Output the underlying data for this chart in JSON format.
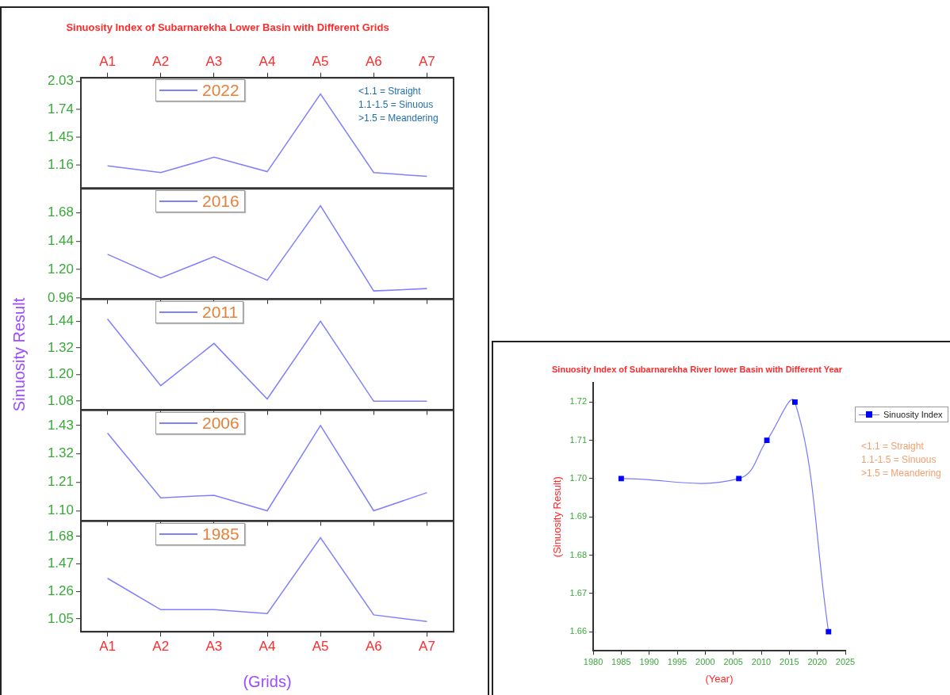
{
  "chart_data": [
    {
      "type": "line",
      "title": "Sinuosity Index of Subarnarekha Lower Basin with Different Grids",
      "categories": [
        "A1",
        "A2",
        "A3",
        "A4",
        "A5",
        "A6",
        "A7"
      ],
      "series": [
        {
          "name": "2022",
          "color": "#8080ff",
          "values": [
            1.15,
            1.08,
            1.24,
            1.09,
            1.9,
            1.08,
            1.04
          ]
        }
      ],
      "ylim": [
        0.91,
        2.07
      ],
      "yticks": [
        1.16,
        1.45,
        1.74,
        2.03
      ],
      "grid": false,
      "legend": "top",
      "marker": "none",
      "line_style": "solid",
      "annotations": [
        "<1.1 = Straight",
        "1.1-1.5 = Sinuous",
        ">1.5 = Meandering"
      ]
    },
    {
      "type": "line",
      "categories": [
        null,
        null,
        null,
        null,
        null,
        null,
        null
      ],
      "series": [
        {
          "name": "2016",
          "color": "#8080ff",
          "values": [
            1.33,
            1.13,
            1.31,
            1.11,
            1.74,
            1.02,
            1.04
          ]
        }
      ],
      "ylim": [
        0.95,
        1.89
      ],
      "yticks": [
        0.96,
        {
          "value": 1.2,
          "label": "1.20"
        },
        1.44,
        1.68
      ],
      "grid": false,
      "legend": "top",
      "marker": "none",
      "line_style": "solid",
      "tick_labels": "y"
    },
    {
      "type": "line",
      "ylabel": "Sinuosity Result",
      "categories": [
        null,
        null,
        null,
        null,
        null,
        null,
        null
      ],
      "series": [
        {
          "name": "2011",
          "color": "#8080ff",
          "values": [
            1.45,
            1.15,
            1.34,
            1.09,
            1.44,
            1.08,
            1.08
          ]
        }
      ],
      "ylim": [
        1.04,
        1.54
      ],
      "yticks": [
        1.08,
        {
          "value": 1.2,
          "label": "1.20"
        },
        1.32,
        1.44
      ],
      "grid": false,
      "legend": "top",
      "marker": "none",
      "line_style": "solid",
      "tick_labels": "y"
    },
    {
      "type": "line",
      "categories": [
        null,
        null,
        null,
        null,
        null,
        null,
        null
      ],
      "series": [
        {
          "name": "2006",
          "color": "#8080ff",
          "values": [
            1.4,
            1.15,
            1.16,
            1.1,
            1.43,
            1.1,
            1.17
          ]
        }
      ],
      "ylim": [
        1.06,
        1.49
      ],
      "yticks": [
        {
          "value": 1.1,
          "label": "1.10"
        },
        1.21,
        1.32,
        1.43
      ],
      "grid": false,
      "legend": "top",
      "marker": "none",
      "line_style": "solid",
      "tick_labels": "y"
    },
    {
      "type": "line",
      "xlabel": "(Grids)",
      "categories": [
        "A1",
        "A2",
        "A3",
        "A4",
        "A5",
        "A6",
        "A7"
      ],
      "series": [
        {
          "name": "1985",
          "color": "#8080ff",
          "values": [
            1.36,
            1.12,
            1.12,
            1.09,
            1.67,
            1.08,
            1.03
          ]
        }
      ],
      "ylim": [
        0.95,
        1.8
      ],
      "yticks": [
        1.05,
        1.26,
        1.47,
        1.68
      ],
      "grid": false,
      "legend": "top",
      "marker": "none",
      "line_style": "solid"
    },
    {
      "type": "line",
      "title": "Sinuosity Index of Subarnarekha River lower Basin with Different Year",
      "xlabel": "(Year)",
      "ylabel": "(Sinuosity Result)",
      "x": [
        1985,
        2006,
        2011,
        2016,
        2022
      ],
      "series": [
        {
          "name": "Sinuosity Index",
          "color": "#0000ff",
          "values": [
            1.7,
            1.7,
            1.71,
            1.72,
            1.66
          ]
        }
      ],
      "xlim": [
        1980,
        2025
      ],
      "xticks": [
        1980,
        1985,
        1990,
        1995,
        2000,
        2005,
        2010,
        2015,
        2020,
        2025
      ],
      "ylim": [
        1.655,
        1.725
      ],
      "yticks": [
        {
          "value": 1.66,
          "label": "1.66"
        },
        {
          "value": 1.67,
          "label": "1.67"
        },
        {
          "value": 1.68,
          "label": "1.68"
        },
        {
          "value": 1.69,
          "label": "1.69"
        },
        {
          "value": 1.7,
          "label": "1.70"
        },
        {
          "value": 1.71,
          "label": "1.71"
        },
        {
          "value": 1.72,
          "label": "1.72"
        }
      ],
      "grid": false,
      "legend": "top right",
      "marker": "square",
      "line_style": "solid",
      "annotations": [
        "<1.1 = Straight",
        "1.1-1.5 = Sinuous",
        ">1.5 = Meandering"
      ]
    }
  ]
}
